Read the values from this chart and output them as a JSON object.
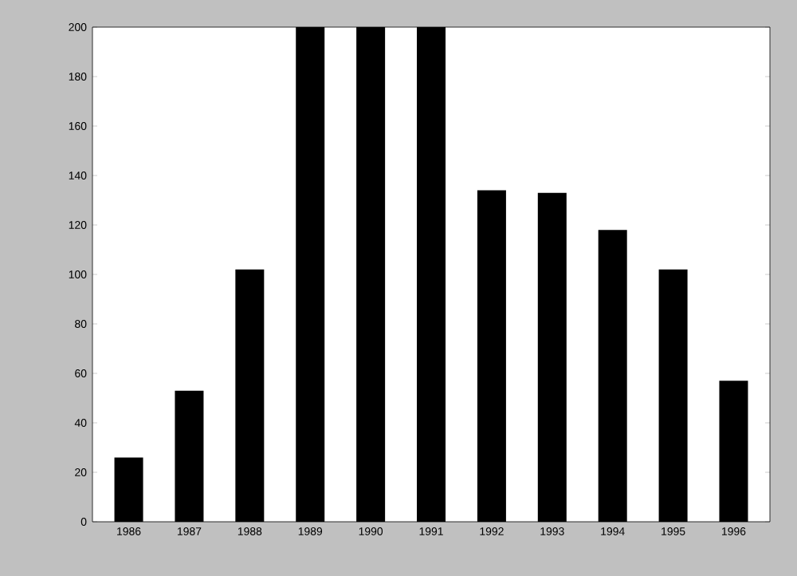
{
  "chart_data": {
    "type": "bar",
    "categories": [
      "1986",
      "1987",
      "1988",
      "1989",
      "1990",
      "1991",
      "1992",
      "1993",
      "1994",
      "1995",
      "1996"
    ],
    "values": [
      26,
      53,
      102,
      200,
      200,
      200,
      134,
      133,
      118,
      102,
      57
    ],
    "color": "#000000",
    "ylim": [
      0,
      200
    ],
    "yticks": [
      0,
      20,
      40,
      60,
      80,
      100,
      120,
      140,
      160,
      180,
      200
    ],
    "grid": false
  }
}
